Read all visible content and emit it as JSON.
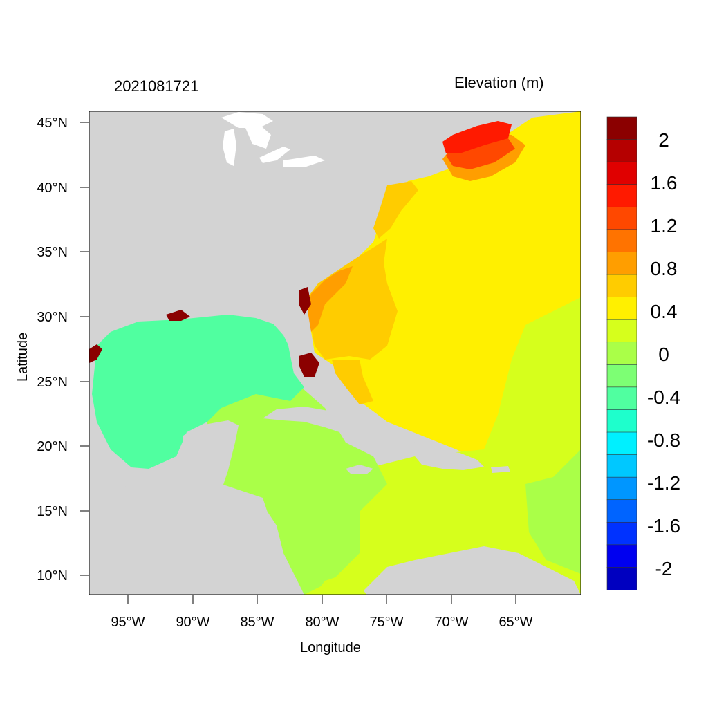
{
  "header": {
    "left_title": "2021081721",
    "right_title": "Elevation (m)"
  },
  "axes": {
    "xlabel": "Longitude",
    "ylabel": "Latitude",
    "x_ticks": [
      "95°W",
      "90°W",
      "85°W",
      "80°W",
      "75°W",
      "70°W",
      "65°W"
    ],
    "y_ticks": [
      "45°N",
      "40°N",
      "35°N",
      "30°N",
      "25°N",
      "20°N",
      "15°N",
      "10°N"
    ]
  },
  "colorbar": {
    "labels": [
      "2",
      "1.6",
      "1.2",
      "0.8",
      "0.4",
      "0",
      "-0.4",
      "-0.8",
      "-1.2",
      "-1.6",
      "-2"
    ],
    "colors": [
      "#8b0000",
      "#b50000",
      "#e00000",
      "#ff1a00",
      "#ff4800",
      "#ff7300",
      "#ff9e00",
      "#ffcc00",
      "#fff000",
      "#d6ff1c",
      "#aaff48",
      "#7dff74",
      "#50ffa0",
      "#1effcc",
      "#00f0ff",
      "#00c8ff",
      "#0096ff",
      "#0064ff",
      "#0032ff",
      "#0000f0",
      "#0000c0"
    ]
  },
  "colors": {
    "land": "#d3d3d3",
    "lakes": "#ffffff",
    "open_atlantic": "#fff000",
    "caribbean": "#d6ff1c",
    "west_caribbean": "#aaff48",
    "gulf_of_mexico": "#50ffa0",
    "se_us_coast": "#ffcc00",
    "gulf_of_maine": "#ff1a00",
    "flooding_land": "#8b0000"
  }
}
